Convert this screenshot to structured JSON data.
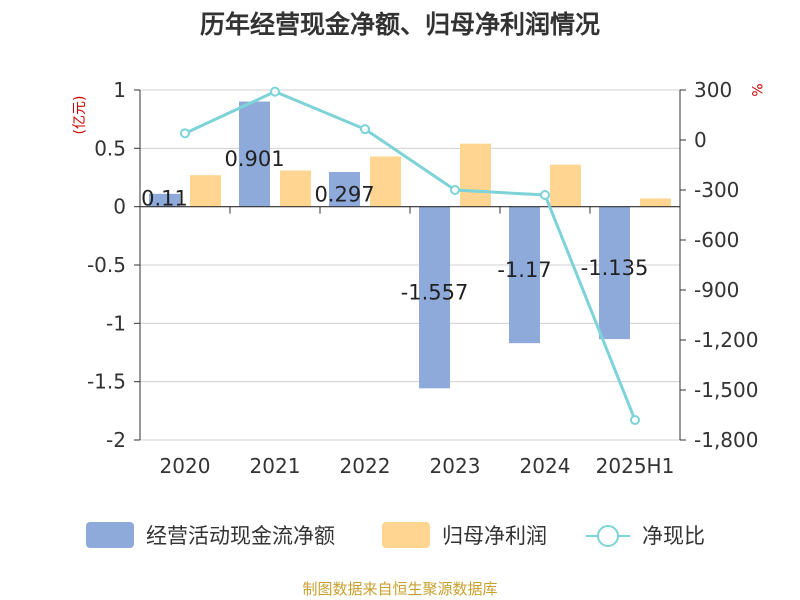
{
  "chart_data": {
    "type": "bar",
    "title": "历年经营现金净额、归母净利润情况",
    "categories": [
      "2020",
      "2021",
      "2022",
      "2023",
      "2024",
      "2025H1"
    ],
    "left_axis": {
      "unit": "(亿元)",
      "ylim": [
        -2,
        1
      ],
      "ticks": [
        "1",
        "0.5",
        "0",
        "-0.5",
        "-1",
        "-1.5",
        "-2"
      ],
      "tick_values": [
        1,
        0.5,
        0,
        -0.5,
        -1,
        -1.5,
        -2
      ]
    },
    "right_axis": {
      "unit": "%",
      "ylim": [
        -1800,
        300
      ],
      "ticks": [
        "300",
        "0",
        "-300",
        "-600",
        "-900",
        "-1,200",
        "-1,500",
        "-1,800"
      ],
      "tick_values": [
        300,
        0,
        -300,
        -600,
        -900,
        -1200,
        -1500,
        -1800
      ]
    },
    "series": [
      {
        "name": "经营活动现金流净额",
        "type": "bar",
        "axis": "left",
        "color": "#8eaadb",
        "values": [
          0.11,
          0.901,
          0.297,
          -1.557,
          -1.17,
          -1.135
        ],
        "labels": [
          "0.11",
          "0.901",
          "0.297",
          "-1.557",
          "-1.17",
          "-1.135"
        ]
      },
      {
        "name": "归母净利润",
        "type": "bar",
        "axis": "left",
        "color": "#ffd591",
        "values": [
          0.27,
          0.31,
          0.43,
          0.54,
          0.36,
          0.07
        ]
      },
      {
        "name": "净现比",
        "type": "line",
        "axis": "right",
        "color": "#7dd3d8",
        "values": [
          40,
          290,
          65,
          -300,
          -330,
          -1680
        ]
      }
    ],
    "grid": true,
    "legend_position": "bottom"
  },
  "source_note": "制图数据来自恒生聚源数据库"
}
